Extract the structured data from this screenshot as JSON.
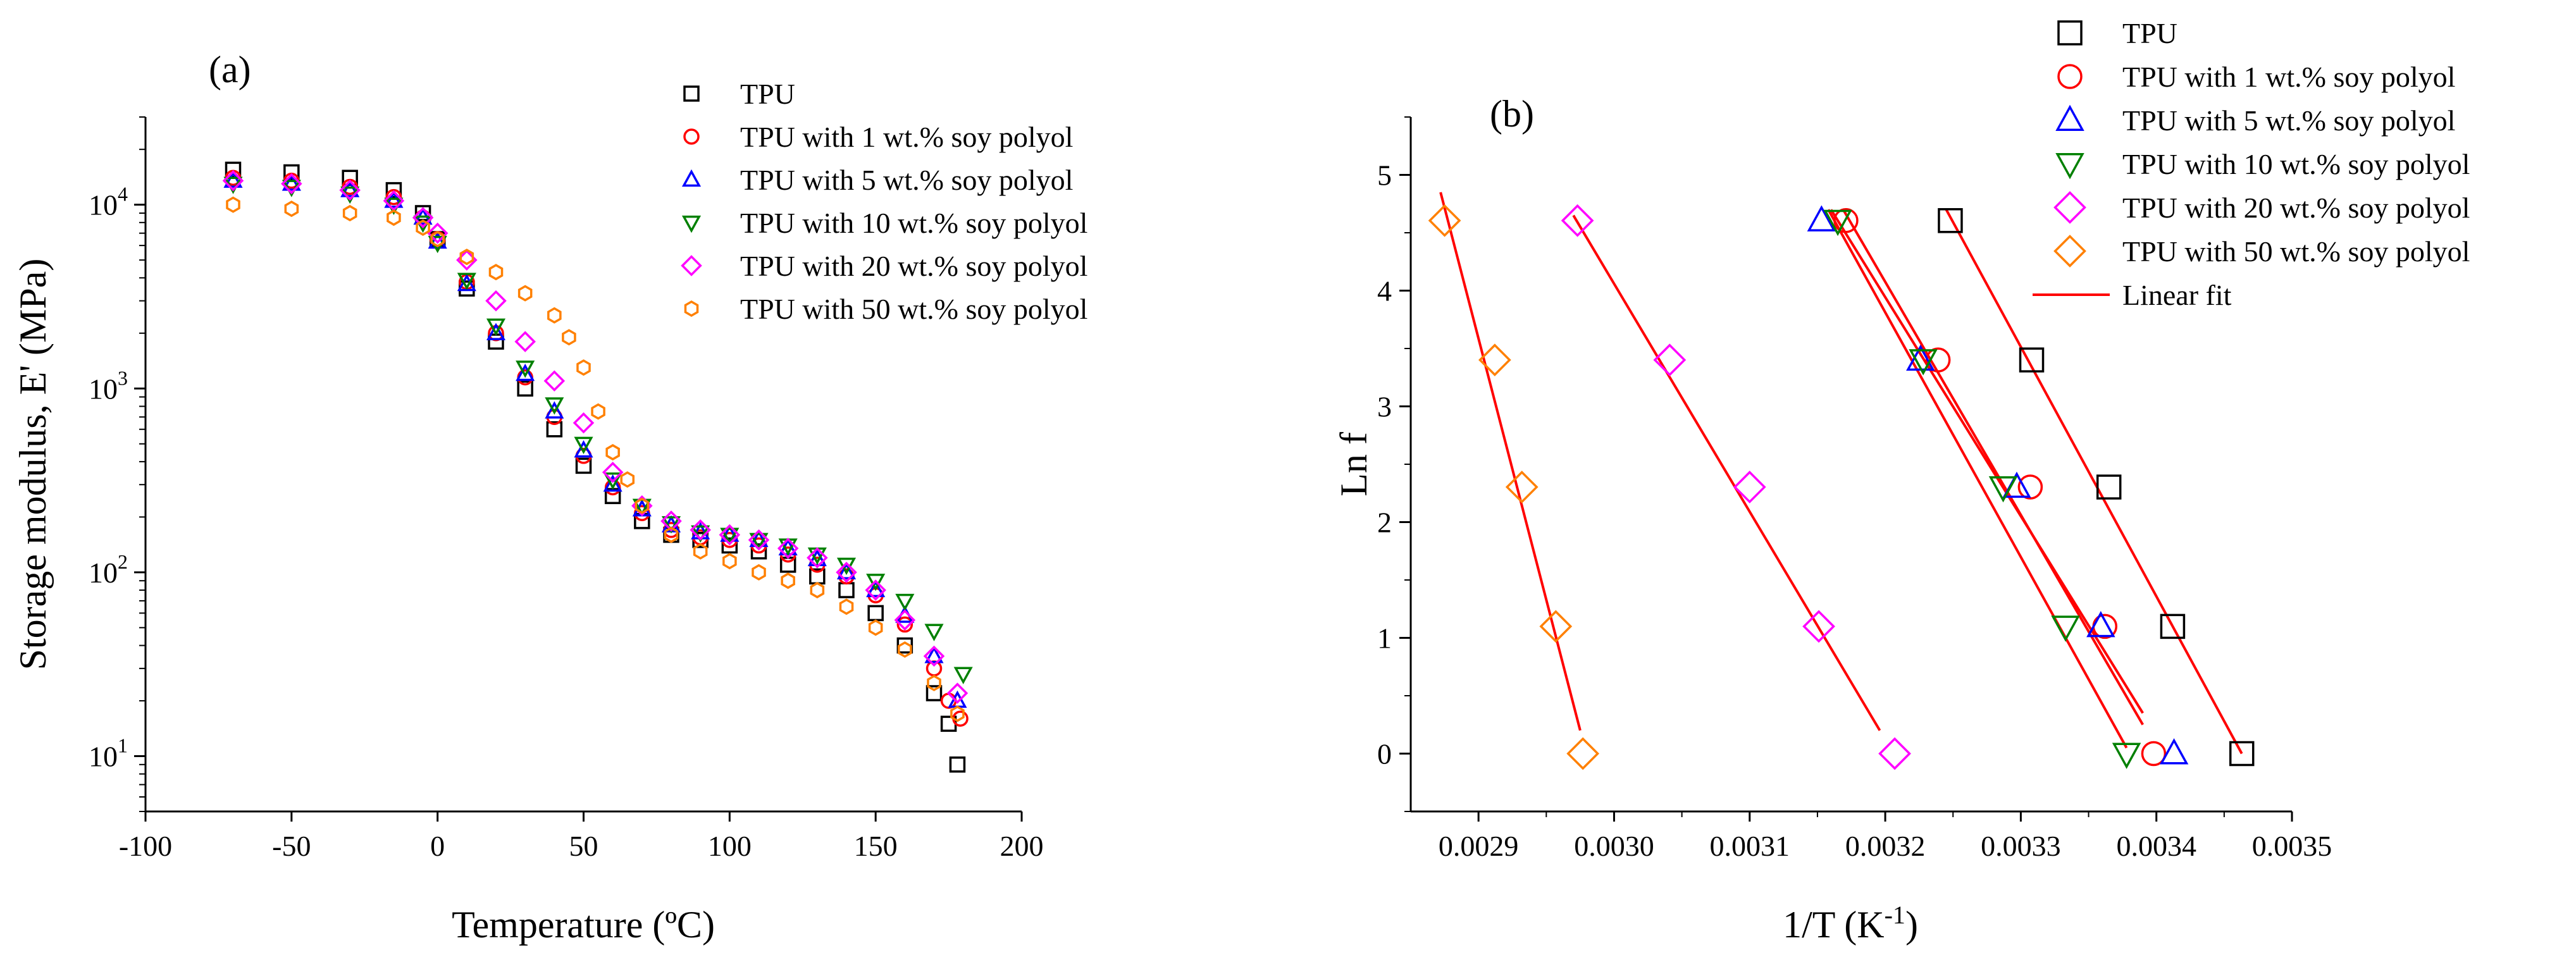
{
  "chart_data": [
    {
      "panel": "(a)",
      "type": "scatter",
      "xlabel": "Temperature (ºC)",
      "ylabel": "Storage modulus, E' (MPa)",
      "xlim": [
        -100,
        200
      ],
      "ylim": [
        5,
        30000
      ],
      "yscale": "log",
      "xticks": [
        -100,
        -50,
        0,
        50,
        100,
        150,
        200
      ],
      "yticks": [
        {
          "value": 10,
          "mant": "10",
          "exp": "1"
        },
        {
          "value": 100,
          "mant": "10",
          "exp": "2"
        },
        {
          "value": 1000,
          "mant": "10",
          "exp": "3"
        },
        {
          "value": 10000,
          "mant": "10",
          "exp": "4"
        }
      ],
      "legend_position": "top-right",
      "series": [
        {
          "name": "TPU",
          "marker": "square",
          "color": "#000000",
          "points": [
            [
              -70,
              15500
            ],
            [
              -50,
              15000
            ],
            [
              -30,
              14000
            ],
            [
              -15,
              12000
            ],
            [
              -5,
              9000
            ],
            [
              0,
              6500
            ],
            [
              10,
              3500
            ],
            [
              20,
              1800
            ],
            [
              30,
              1000
            ],
            [
              40,
              600
            ],
            [
              50,
              380
            ],
            [
              60,
              260
            ],
            [
              70,
              190
            ],
            [
              80,
              160
            ],
            [
              90,
              150
            ],
            [
              100,
              140
            ],
            [
              110,
              130
            ],
            [
              120,
              110
            ],
            [
              130,
              95
            ],
            [
              140,
              80
            ],
            [
              150,
              60
            ],
            [
              160,
              40
            ],
            [
              170,
              22
            ],
            [
              175,
              15
            ],
            [
              178,
              9
            ]
          ]
        },
        {
          "name": "TPU with 1 wt.% soy polyol",
          "marker": "circle",
          "color": "#ff0000",
          "points": [
            [
              -70,
              14000
            ],
            [
              -50,
              13500
            ],
            [
              -30,
              12500
            ],
            [
              -15,
              11000
            ],
            [
              -5,
              8500
            ],
            [
              0,
              6500
            ],
            [
              10,
              3800
            ],
            [
              20,
              2000
            ],
            [
              30,
              1150
            ],
            [
              40,
              700
            ],
            [
              50,
              430
            ],
            [
              60,
              290
            ],
            [
              70,
              210
            ],
            [
              80,
              170
            ],
            [
              90,
              155
            ],
            [
              100,
              150
            ],
            [
              110,
              140
            ],
            [
              120,
              125
            ],
            [
              130,
              110
            ],
            [
              140,
              95
            ],
            [
              150,
              75
            ],
            [
              160,
              52
            ],
            [
              170,
              30
            ],
            [
              175,
              20
            ],
            [
              179,
              16
            ]
          ]
        },
        {
          "name": "TPU with 5 wt.% soy polyol",
          "marker": "triangle",
          "color": "#0000ff",
          "points": [
            [
              -70,
              13500
            ],
            [
              -50,
              13000
            ],
            [
              -30,
              12000
            ],
            [
              -15,
              10500
            ],
            [
              -5,
              8500
            ],
            [
              0,
              6300
            ],
            [
              10,
              3700
            ],
            [
              20,
              2000
            ],
            [
              30,
              1200
            ],
            [
              40,
              750
            ],
            [
              50,
              460
            ],
            [
              60,
              300
            ],
            [
              70,
              220
            ],
            [
              80,
              180
            ],
            [
              90,
              165
            ],
            [
              100,
              160
            ],
            [
              110,
              150
            ],
            [
              120,
              135
            ],
            [
              130,
              118
            ],
            [
              140,
              100
            ],
            [
              150,
              80
            ],
            [
              160,
              58
            ],
            [
              170,
              35
            ],
            [
              178,
              20
            ]
          ]
        },
        {
          "name": "TPU with 10 wt.% soy polyol",
          "marker": "triangle-down",
          "color": "#008000",
          "points": [
            [
              -70,
              13000
            ],
            [
              -50,
              12500
            ],
            [
              -30,
              11500
            ],
            [
              -15,
              10000
            ],
            [
              -5,
              8000
            ],
            [
              0,
              6200
            ],
            [
              10,
              3900
            ],
            [
              20,
              2200
            ],
            [
              30,
              1300
            ],
            [
              40,
              820
            ],
            [
              50,
              500
            ],
            [
              60,
              320
            ],
            [
              70,
              230
            ],
            [
              80,
              185
            ],
            [
              90,
              165
            ],
            [
              100,
              160
            ],
            [
              110,
              150
            ],
            [
              120,
              140
            ],
            [
              130,
              125
            ],
            [
              140,
              110
            ],
            [
              150,
              90
            ],
            [
              160,
              70
            ],
            [
              170,
              48
            ],
            [
              180,
              28
            ]
          ]
        },
        {
          "name": "TPU with 20 wt.% soy polyol",
          "marker": "diamond",
          "color": "#ff00ff",
          "points": [
            [
              -70,
              13500
            ],
            [
              -50,
              13000
            ],
            [
              -30,
              12000
            ],
            [
              -15,
              10500
            ],
            [
              -5,
              8500
            ],
            [
              0,
              7000
            ],
            [
              10,
              5000
            ],
            [
              20,
              3000
            ],
            [
              30,
              1800
            ],
            [
              40,
              1100
            ],
            [
              50,
              650
            ],
            [
              60,
              350
            ],
            [
              70,
              230
            ],
            [
              80,
              190
            ],
            [
              90,
              170
            ],
            [
              100,
              160
            ],
            [
              110,
              150
            ],
            [
              120,
              135
            ],
            [
              130,
              120
            ],
            [
              140,
              100
            ],
            [
              150,
              80
            ],
            [
              160,
              55
            ],
            [
              170,
              35
            ],
            [
              178,
              22
            ]
          ]
        },
        {
          "name": "TPU with 50 wt.% soy polyol",
          "marker": "hexagon",
          "color": "#ff8000",
          "points": [
            [
              -70,
              10000
            ],
            [
              -50,
              9500
            ],
            [
              -30,
              9000
            ],
            [
              -15,
              8500
            ],
            [
              -5,
              7500
            ],
            [
              0,
              6500
            ],
            [
              10,
              5200
            ],
            [
              20,
              4300
            ],
            [
              30,
              3300
            ],
            [
              40,
              2500
            ],
            [
              45,
              1900
            ],
            [
              50,
              1300
            ],
            [
              55,
              750
            ],
            [
              60,
              450
            ],
            [
              65,
              320
            ],
            [
              70,
              230
            ],
            [
              80,
              160
            ],
            [
              90,
              130
            ],
            [
              100,
              115
            ],
            [
              110,
              100
            ],
            [
              120,
              90
            ],
            [
              130,
              80
            ],
            [
              140,
              65
            ],
            [
              150,
              50
            ],
            [
              160,
              38
            ],
            [
              170,
              25
            ],
            [
              178,
              17
            ]
          ]
        }
      ]
    },
    {
      "panel": "(b)",
      "type": "scatter",
      "xlabel": "1/T (K",
      "xlabel_sup": "-1",
      "xlabel_end": ")",
      "ylabel": "Ln f",
      "xlim": [
        0.00285,
        0.0035
      ],
      "ylim": [
        -0.5,
        5.5
      ],
      "xticks": [
        "0.0029",
        "0.0030",
        "0.0031",
        "0.0032",
        "0.0033",
        "0.0034",
        "0.0035"
      ],
      "yticks": [
        0,
        1,
        2,
        3,
        4,
        5
      ],
      "legend_position": "top-right",
      "fit_color": "#ff0000",
      "series": [
        {
          "name": "TPU",
          "marker": "square",
          "color": "#000000",
          "points": [
            [
              0.003248,
              4.605
            ],
            [
              0.003308,
              3.401
            ],
            [
              0.003365,
              2.303
            ],
            [
              0.003412,
              1.099
            ],
            [
              0.003463,
              0.0
            ]
          ],
          "fit": [
            [
              0.003245,
              4.7
            ],
            [
              0.003463,
              0.0
            ]
          ]
        },
        {
          "name": "TPU with 1 wt.% soy polyol",
          "marker": "circle",
          "color": "#ff0000",
          "points": [
            [
              0.003171,
              4.605
            ],
            [
              0.003239,
              3.401
            ],
            [
              0.003307,
              2.303
            ],
            [
              0.003362,
              1.099
            ],
            [
              0.003398,
              0.0
            ]
          ],
          "fit": [
            [
              0.003169,
              4.7
            ],
            [
              0.00339,
              0.25
            ]
          ]
        },
        {
          "name": "TPU with 5 wt.% soy polyol",
          "marker": "triangle",
          "color": "#0000ff",
          "points": [
            [
              0.003153,
              4.605
            ],
            [
              0.003226,
              3.401
            ],
            [
              0.003297,
              2.303
            ],
            [
              0.003359,
              1.099
            ],
            [
              0.003413,
              0.0
            ]
          ],
          "fit": [
            [
              0.00316,
              4.7
            ],
            [
              0.00339,
              0.35
            ]
          ]
        },
        {
          "name": "TPU with 10 wt.% soy polyol",
          "marker": "triangle-down",
          "color": "#008000",
          "points": [
            [
              0.003165,
              4.605
            ],
            [
              0.003228,
              3.401
            ],
            [
              0.003287,
              2.303
            ],
            [
              0.003333,
              1.099
            ],
            [
              0.003378,
              0.0
            ]
          ],
          "fit": [
            [
              0.003158,
              4.7
            ],
            [
              0.003378,
              0.05
            ]
          ]
        },
        {
          "name": "TPU with 20 wt.% soy polyol",
          "marker": "diamond",
          "color": "#ff00ff",
          "points": [
            [
              0.002973,
              4.605
            ],
            [
              0.003041,
              3.401
            ],
            [
              0.0031,
              2.303
            ],
            [
              0.003151,
              1.099
            ],
            [
              0.003207,
              0.0
            ]
          ],
          "fit": [
            [
              0.00297,
              4.65
            ],
            [
              0.003196,
              0.2
            ]
          ]
        },
        {
          "name": "TPU with 50 wt.% soy polyol",
          "marker": "diamond",
          "color": "#ff8000",
          "points": [
            [
              0.002875,
              4.605
            ],
            [
              0.002912,
              3.401
            ],
            [
              0.002932,
              2.303
            ],
            [
              0.002957,
              1.099
            ],
            [
              0.002977,
              0.0
            ]
          ],
          "fit": [
            [
              0.002872,
              4.85
            ],
            [
              0.002975,
              0.2
            ]
          ]
        }
      ],
      "legend_fit_label": "Linear fit"
    }
  ]
}
